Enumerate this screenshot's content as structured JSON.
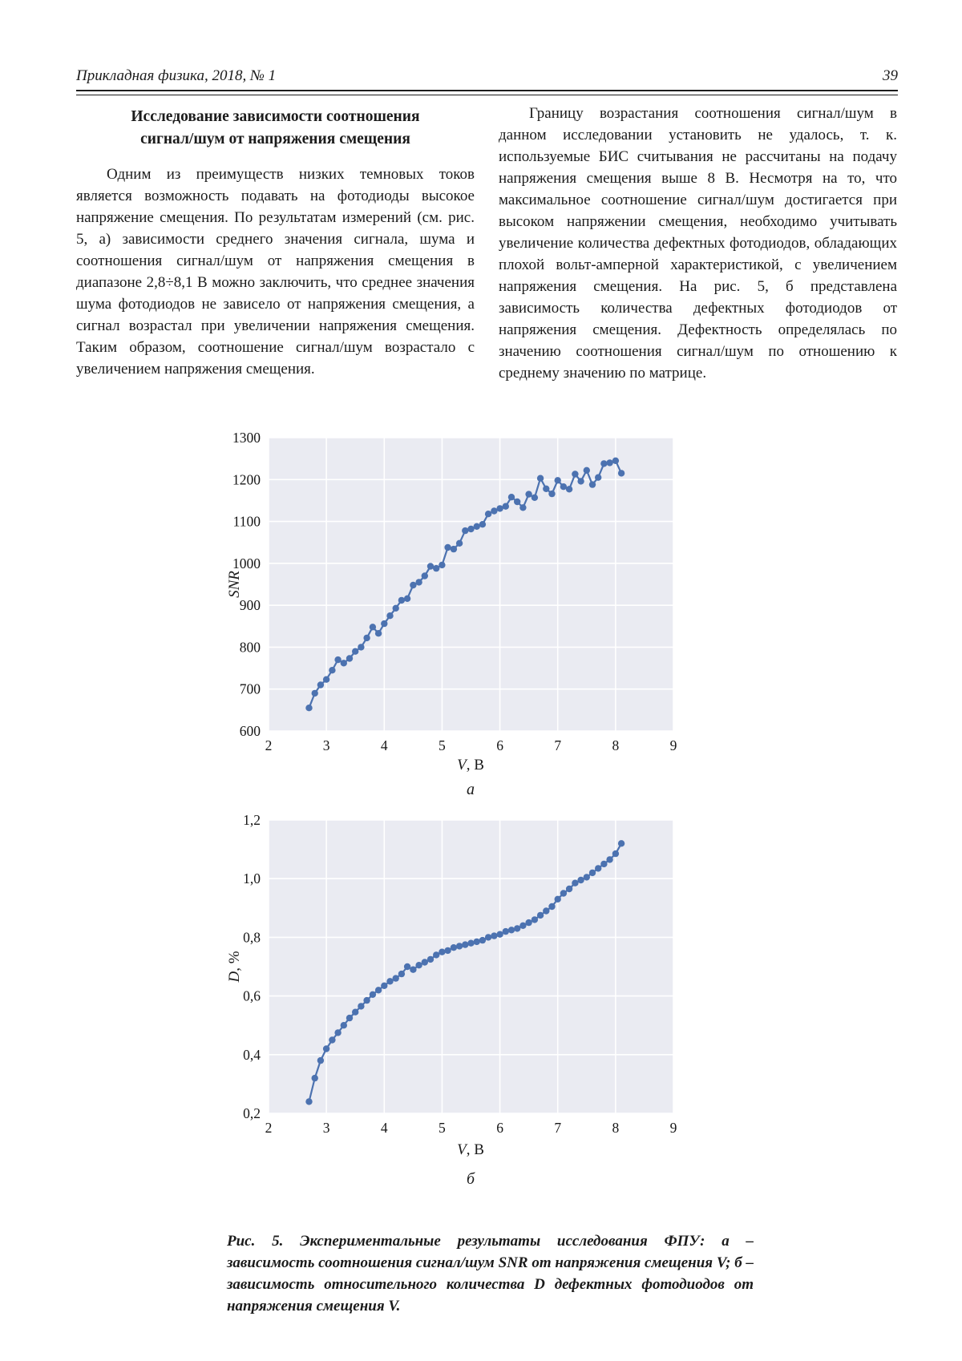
{
  "page": {
    "header": {
      "journal": "Прикладная физика, 2018, № 1",
      "page_number": "39"
    },
    "left_column": {
      "title_line1": "Исследование зависимости соотношения",
      "title_line2": "сигнал/шум от напряжения смещения",
      "paragraph": "Одним из преимуществ низких темновых токов является возможность подавать на фотодиоды высокое напряжение смещения. По результатам измерений (см. рис. 5, а) зависимости среднего значения сигнала, шума и соотношения сигнал/шум от напряжения смещения в диапазоне 2,8÷8,1 В можно заключить, что среднее значения шума фотодиодов не зависело от напряжения смещения, а сигнал возрастал при увеличении напряжения смещения. Таким образом, соотношение сигнал/шум возрастало с увеличением напряжения смещения."
    },
    "right_column": {
      "paragraph": "Границу возрастания соотношения сигнал/шум в данном исследовании установить не удалось, т. к. используемые БИС считывания не рассчитаны на подачу напряжения смещения выше 8 В. Несмотря на то, что максимальное соотношение сигнал/шум достигается при высоком напряжении смещения, необходимо учитывать увеличение количества дефектных фотодиодов, обладающих плохой вольт-амперной характеристикой, с увеличением напряжения смещения. На рис. 5, б представлена зависимость количества дефектных фотодиодов от напряжения смещения. Дефектность определялась по значению соотношения сигнал/шум по отношению к среднему значению по матрице."
    },
    "caption": "Рис. 5. Экспериментальные результаты исследования ФПУ: а – зависимость соотношения сигнал/шум SNR от напряжения смещения V; б – зависимость относительного количества D дефектных фотодиодов от напряжения смещения V."
  },
  "chart_data": [
    {
      "type": "line",
      "subfigure_label": "а",
      "ylabel": "SNR",
      "xlabel_var": "V",
      "xlabel_unit": ", В",
      "xlim": [
        2,
        9
      ],
      "ylim": [
        600,
        1300
      ],
      "grid": true,
      "legend": "none",
      "x_ticks": [
        2,
        3,
        4,
        5,
        6,
        7,
        8,
        9
      ],
      "x_tick_labels": [
        "2",
        "3",
        "4",
        "5",
        "6",
        "7",
        "8",
        "9"
      ],
      "y_ticks": [
        600,
        700,
        800,
        900,
        1000,
        1100,
        1200,
        1300
      ],
      "y_tick_labels": [
        "600",
        "700",
        "800",
        "900",
        "1000",
        "1100",
        "1200",
        "1300"
      ],
      "x": [
        2.7,
        2.8,
        2.9,
        3.0,
        3.1,
        3.2,
        3.3,
        3.4,
        3.5,
        3.6,
        3.7,
        3.8,
        3.9,
        4.0,
        4.1,
        4.2,
        4.3,
        4.4,
        4.5,
        4.6,
        4.7,
        4.8,
        4.9,
        5.0,
        5.1,
        5.2,
        5.3,
        5.4,
        5.5,
        5.6,
        5.7,
        5.8,
        5.9,
        6.0,
        6.1,
        6.2,
        6.3,
        6.4,
        6.5,
        6.6,
        6.7,
        6.8,
        6.9,
        7.0,
        7.1,
        7.2,
        7.3,
        7.4,
        7.5,
        7.6,
        7.7,
        7.8,
        7.9,
        8.0,
        8.1
      ],
      "y": [
        655,
        690,
        710,
        723,
        745,
        770,
        762,
        773,
        790,
        800,
        822,
        848,
        833,
        856,
        875,
        893,
        912,
        916,
        948,
        955,
        970,
        993,
        988,
        996,
        1038,
        1034,
        1048,
        1078,
        1082,
        1088,
        1093,
        1118,
        1125,
        1131,
        1136,
        1158,
        1147,
        1133,
        1165,
        1157,
        1203,
        1178,
        1166,
        1198,
        1183,
        1177,
        1213,
        1196,
        1222,
        1188,
        1205,
        1238,
        1240,
        1245,
        1215
      ],
      "colors": {
        "line": "#4c72b0",
        "plot_bg": "#eaebf2",
        "grid": "#ffffff"
      }
    },
    {
      "type": "line",
      "subfigure_label": "б",
      "ylabel_var": "D",
      "ylabel_unit": ", %",
      "xlabel_var": "V",
      "xlabel_unit": ", В",
      "xlim": [
        2,
        9
      ],
      "ylim": [
        0.2,
        1.2
      ],
      "grid": true,
      "legend": "none",
      "x_ticks": [
        2,
        3,
        4,
        5,
        6,
        7,
        8,
        9
      ],
      "x_tick_labels": [
        "2",
        "3",
        "4",
        "5",
        "6",
        "7",
        "8",
        "9"
      ],
      "y_ticks": [
        0.2,
        0.4,
        0.6,
        0.8,
        1.0,
        1.2
      ],
      "y_tick_labels": [
        "0,2",
        "0,4",
        "0,6",
        "0,8",
        "1,0",
        "1,2"
      ],
      "x": [
        2.7,
        2.8,
        2.9,
        3.0,
        3.1,
        3.2,
        3.3,
        3.4,
        3.5,
        3.6,
        3.7,
        3.8,
        3.9,
        4.0,
        4.1,
        4.2,
        4.3,
        4.4,
        4.5,
        4.6,
        4.7,
        4.8,
        4.9,
        5.0,
        5.1,
        5.2,
        5.3,
        5.4,
        5.5,
        5.6,
        5.7,
        5.8,
        5.9,
        6.0,
        6.1,
        6.2,
        6.3,
        6.4,
        6.5,
        6.6,
        6.7,
        6.8,
        6.9,
        7.0,
        7.1,
        7.2,
        7.3,
        7.4,
        7.5,
        7.6,
        7.7,
        7.8,
        7.9,
        8.0,
        8.1
      ],
      "y": [
        0.24,
        0.32,
        0.38,
        0.42,
        0.45,
        0.475,
        0.5,
        0.525,
        0.545,
        0.565,
        0.585,
        0.605,
        0.62,
        0.635,
        0.65,
        0.66,
        0.675,
        0.7,
        0.69,
        0.705,
        0.715,
        0.725,
        0.74,
        0.75,
        0.755,
        0.765,
        0.77,
        0.775,
        0.78,
        0.785,
        0.79,
        0.8,
        0.805,
        0.81,
        0.82,
        0.825,
        0.83,
        0.84,
        0.85,
        0.86,
        0.875,
        0.89,
        0.905,
        0.93,
        0.95,
        0.965,
        0.985,
        0.995,
        1.005,
        1.02,
        1.035,
        1.05,
        1.065,
        1.085,
        1.12
      ],
      "colors": {
        "line": "#4c72b0",
        "plot_bg": "#eaebf2",
        "grid": "#ffffff"
      }
    }
  ]
}
